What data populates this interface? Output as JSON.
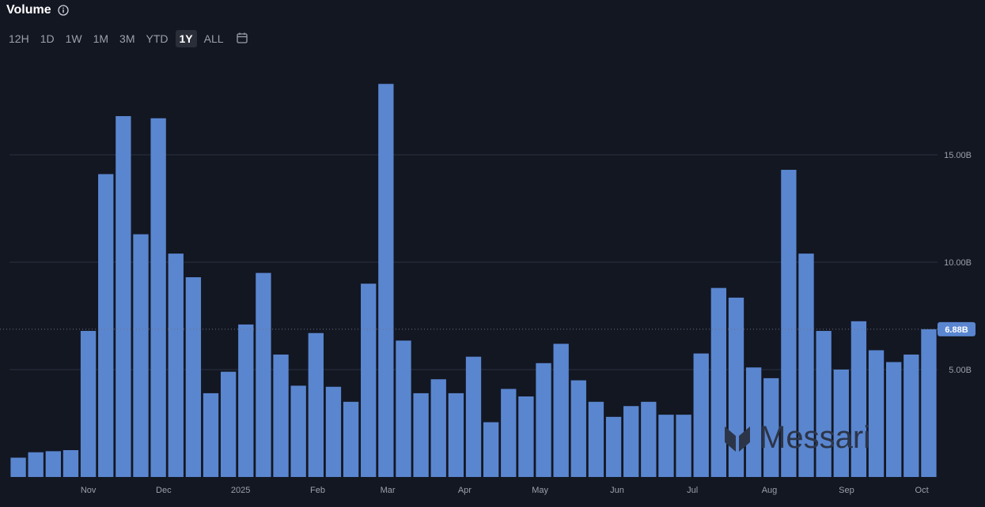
{
  "header": {
    "title": "Volume"
  },
  "range": {
    "options": [
      "12H",
      "1D",
      "1W",
      "1M",
      "3M",
      "YTD",
      "1Y",
      "ALL"
    ],
    "active": "1Y"
  },
  "watermark": "Messari",
  "colors": {
    "bar": "#5a86d0",
    "grid": "#2a3140",
    "badge": "#5a86d0",
    "background": "#131722"
  },
  "chart_data": {
    "type": "bar",
    "series": [
      {
        "values": [
          0.9,
          1.15,
          1.2,
          1.25,
          6.8,
          14.1,
          16.8,
          11.3,
          16.7,
          10.4,
          9.3,
          3.9,
          4.9,
          7.1,
          9.5,
          5.7,
          4.25,
          6.7,
          4.2,
          3.5,
          9.0,
          18.3,
          6.35,
          3.9,
          4.55,
          3.9,
          5.6,
          2.55,
          4.1,
          3.75,
          5.3,
          6.2,
          4.5,
          3.5,
          2.8,
          3.3,
          3.5,
          2.9,
          2.9,
          5.75,
          8.8,
          8.35,
          5.1,
          4.6,
          14.3,
          10.4,
          6.8,
          5.0,
          7.25,
          5.9,
          5.35,
          5.7,
          6.88
        ]
      }
    ],
    "x_tick_labels": [
      {
        "label": "Nov",
        "index": 4
      },
      {
        "label": "Dec",
        "index": 8.3
      },
      {
        "label": "2025",
        "index": 12.7
      },
      {
        "label": "Feb",
        "index": 17.1
      },
      {
        "label": "Mar",
        "index": 21.1
      },
      {
        "label": "Apr",
        "index": 25.5
      },
      {
        "label": "May",
        "index": 29.8
      },
      {
        "label": "Jun",
        "index": 34.2
      },
      {
        "label": "Jul",
        "index": 38.5
      },
      {
        "label": "Aug",
        "index": 42.9
      },
      {
        "label": "Sep",
        "index": 47.3
      },
      {
        "label": "Oct",
        "index": 51.6
      }
    ],
    "y_ticks": [
      {
        "label": "5.00B",
        "value": 5
      },
      {
        "label": "10.00B",
        "value": 10
      },
      {
        "label": "15.00B",
        "value": 15
      }
    ],
    "ylim": [
      0,
      20
    ],
    "last_value_label": "6.88B",
    "last_value": 6.88,
    "unit": "B"
  }
}
